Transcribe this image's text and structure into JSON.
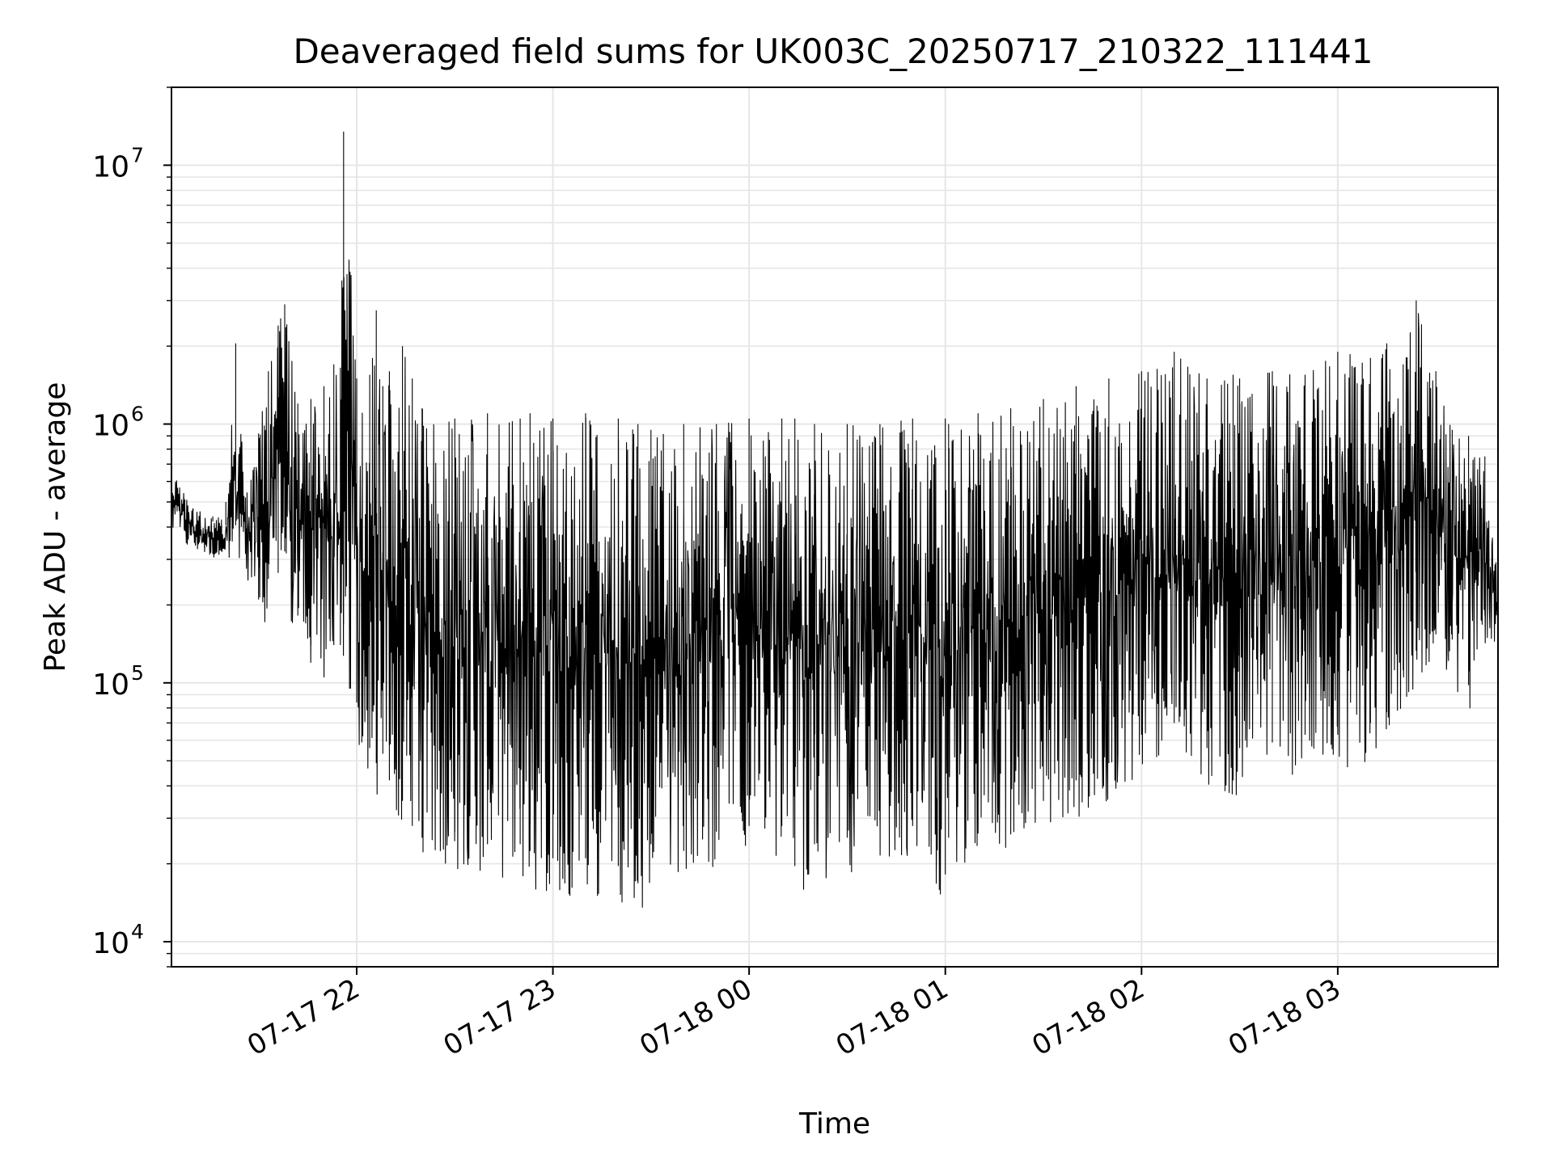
{
  "chart_data": {
    "type": "line",
    "title": "Deaveraged field sums for UK003C_20250717_210322_111441",
    "xlabel": "Time",
    "ylabel": "Peak ADU - average",
    "yscale": "log",
    "ylim": [
      8000,
      20000000
    ],
    "xlim": [
      "2025-07-17 21:03:22",
      "2025-07-18 03:49:00"
    ],
    "x_ticks": [
      {
        "value": "2025-07-17 22:00",
        "label": "07-17 22"
      },
      {
        "value": "2025-07-17 23:00",
        "label": "07-17 23"
      },
      {
        "value": "2025-07-18 00:00",
        "label": "07-18 00"
      },
      {
        "value": "2025-07-18 01:00",
        "label": "07-18 01"
      },
      {
        "value": "2025-07-18 02:00",
        "label": "07-18 02"
      },
      {
        "value": "2025-07-18 03:00",
        "label": "07-18 03"
      }
    ],
    "y_ticks": [
      {
        "value": 10000,
        "base": "10",
        "exp": "4"
      },
      {
        "value": 100000,
        "base": "10",
        "exp": "5"
      },
      {
        "value": 1000000,
        "base": "10",
        "exp": "6"
      },
      {
        "value": 10000000,
        "base": "10",
        "exp": "7"
      }
    ],
    "grid": true,
    "line_color": "#000000",
    "grid_color": "#e6e6e6",
    "series": [
      {
        "x": [
          "2025-07-17 21:03:22",
          "2025-07-17 21:10",
          "2025-07-17 21:16",
          "2025-07-17 21:20",
          "2025-07-17 21:23",
          "2025-07-17 21:26",
          "2025-07-17 21:30",
          "2025-07-17 21:33",
          "2025-07-17 21:36",
          "2025-07-17 21:38",
          "2025-07-17 21:42",
          "2025-07-17 21:46",
          "2025-07-17 21:50",
          "2025-07-17 21:53",
          "2025-07-17 21:55",
          "2025-07-17 21:56",
          "2025-07-17 22:00",
          "2025-07-17 22:04",
          "2025-07-17 22:06",
          "2025-07-17 22:08",
          "2025-07-17 22:10",
          "2025-07-17 22:14",
          "2025-07-17 22:17",
          "2025-07-17 22:20",
          "2025-07-17 22:30",
          "2025-07-17 22:40",
          "2025-07-17 22:50",
          "2025-07-17 22:53",
          "2025-07-17 23:00",
          "2025-07-17 23:10",
          "2025-07-17 23:20",
          "2025-07-17 23:26",
          "2025-07-17 23:30",
          "2025-07-17 23:40",
          "2025-07-17 23:50",
          "2025-07-18 00:00",
          "2025-07-18 00:10",
          "2025-07-18 00:14",
          "2025-07-18 00:20",
          "2025-07-18 00:30",
          "2025-07-18 00:40",
          "2025-07-18 00:50",
          "2025-07-18 01:00",
          "2025-07-18 01:01",
          "2025-07-18 01:10",
          "2025-07-18 01:20",
          "2025-07-18 01:30",
          "2025-07-18 01:40",
          "2025-07-18 01:50",
          "2025-07-18 02:00",
          "2025-07-18 02:10",
          "2025-07-18 02:20",
          "2025-07-18 02:28",
          "2025-07-18 02:30",
          "2025-07-18 02:40",
          "2025-07-18 02:50",
          "2025-07-18 03:00",
          "2025-07-18 03:10",
          "2025-07-18 03:15",
          "2025-07-18 03:20",
          "2025-07-18 03:24",
          "2025-07-18 03:30",
          "2025-07-18 03:35",
          "2025-07-18 03:40",
          "2025-07-18 03:45",
          "2025-07-18 03:49"
        ],
        "upper": [
          680000,
          470000,
          440000,
          500000,
          2050000,
          520000,
          920000,
          1600000,
          2400000,
          2900000,
          1200000,
          1250000,
          1400000,
          1700000,
          1650000,
          13500000,
          1500000,
          1550000,
          2750000,
          1400000,
          1600000,
          2000000,
          1500000,
          1150000,
          1050000,
          1100000,
          1050000,
          1100000,
          1050000,
          1100000,
          1050000,
          1000000,
          950000,
          1000000,
          1000000,
          1050000,
          1050000,
          1050000,
          1000000,
          1000000,
          1000000,
          1050000,
          1050000,
          1000000,
          1100000,
          1150000,
          1250000,
          1400000,
          1500000,
          1600000,
          1900000,
          1500000,
          1550000,
          1500000,
          1600000,
          1550000,
          1900000,
          1800000,
          2050000,
          1700000,
          3000000,
          1600000,
          950000,
          900000,
          750000,
          250000
        ],
        "lower": [
          380000,
          330000,
          300000,
          290000,
          290000,
          250000,
          150000,
          180000,
          190000,
          230000,
          130000,
          100000,
          95000,
          100000,
          100000,
          120000,
          60000,
          40000,
          35000,
          38000,
          30000,
          25000,
          20000,
          18000,
          19000,
          17000,
          17000,
          16000,
          15000,
          15000,
          14000,
          12000,
          17000,
          16000,
          19000,
          20000,
          20000,
          14000,
          17000,
          18000,
          21000,
          20000,
          13000,
          18000,
          22000,
          23000,
          25000,
          30000,
          35000,
          45000,
          50000,
          40000,
          30000,
          40000,
          42000,
          45000,
          45000,
          50000,
          55000,
          80000,
          95000,
          110000,
          105000,
          70000,
          130000,
          150000
        ]
      }
    ]
  }
}
